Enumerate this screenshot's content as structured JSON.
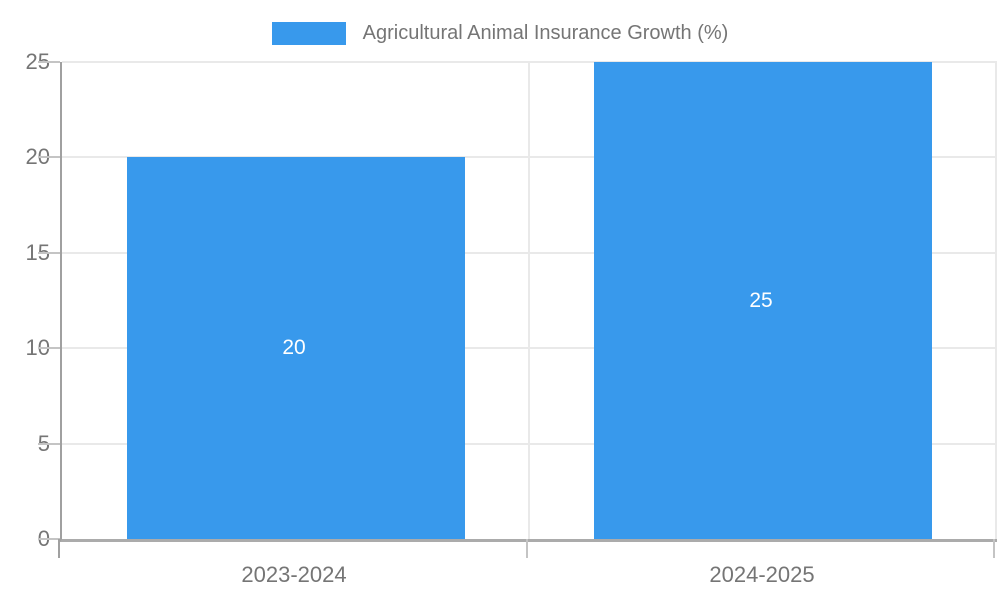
{
  "chart_data": {
    "type": "bar",
    "title": "",
    "legend": {
      "position": "top-center",
      "label": "Agricultural Animal Insurance Growth (%)"
    },
    "categories": [
      "2023-2024",
      "2024-2025"
    ],
    "values": [
      20,
      25
    ],
    "data_labels": [
      "20",
      "25"
    ],
    "data_label_position": "center-inside",
    "xlabel": "",
    "ylabel": "",
    "ylim": [
      0,
      25
    ],
    "yticks": [
      0,
      5,
      10,
      15,
      20,
      25
    ],
    "grid": true,
    "colors": {
      "bar": "#3899EC",
      "grid": "#e9e9e9",
      "x_axis": "#ababab",
      "y_axis": "#a0a0a0",
      "tick_mark": "#c4c4c4",
      "tick_text": "#757575",
      "data_label_text": "#ffffff",
      "background": "#ffffff"
    }
  }
}
